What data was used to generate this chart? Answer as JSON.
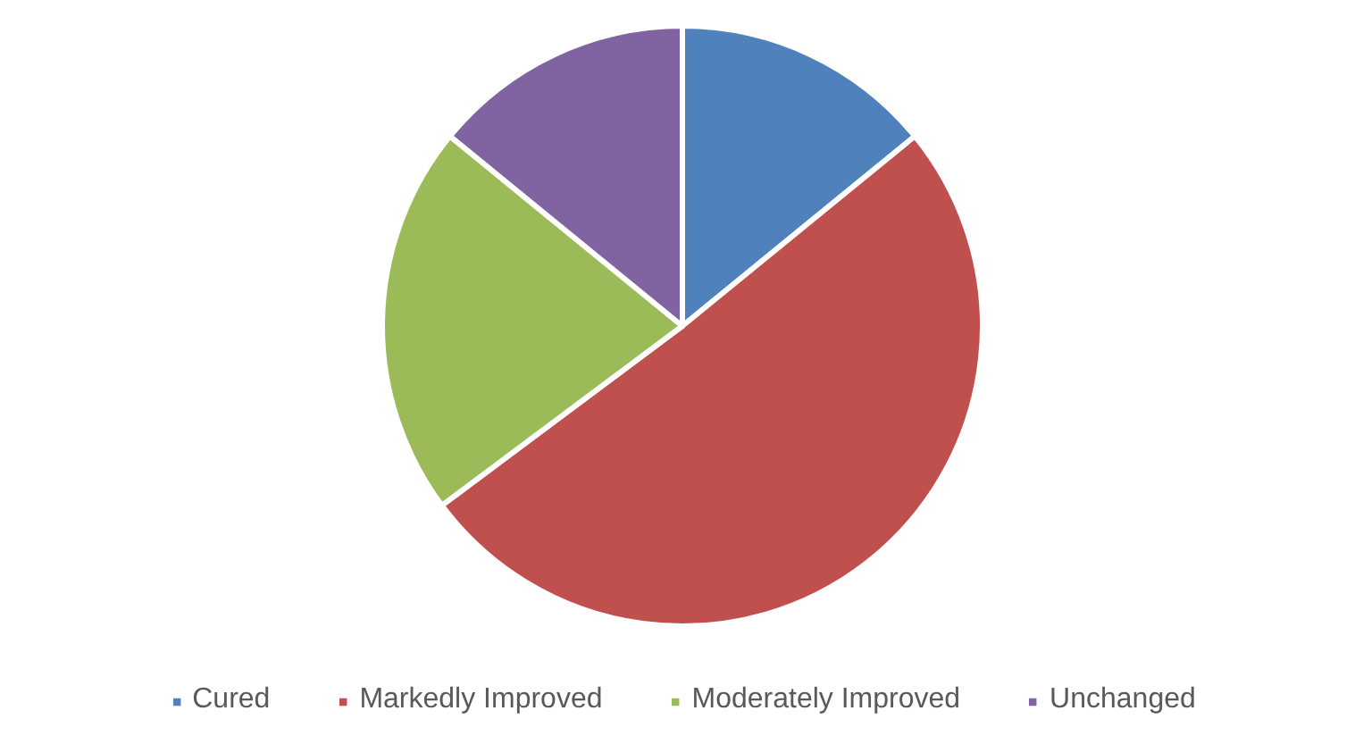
{
  "chart_data": {
    "type": "pie",
    "categories": [
      "Cured",
      "Markedly Improved",
      "Moderately Improved",
      "Unchanged"
    ],
    "values": [
      14.1,
      50.7,
      21.1,
      14.1
    ],
    "colors": [
      "#4f81bd",
      "#c0504d",
      "#9bbb59",
      "#8064a2"
    ],
    "legend": "bottom"
  }
}
